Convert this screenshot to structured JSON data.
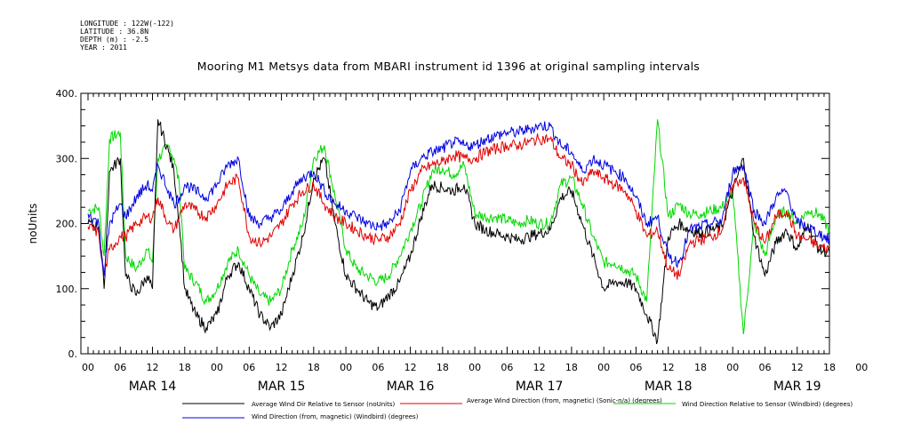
{
  "meta": {
    "longitude": "LONGITUDE : 122W(-122)",
    "latitude": "LATITUDE : 36.8N",
    "depth": "DEPTH (m) : -2.5",
    "year": "YEAR : 2011"
  },
  "colors": {
    "black": "#000000",
    "red": "#e00000",
    "blue": "#0000e0",
    "green": "#00d800"
  },
  "chart_data": {
    "type": "line",
    "title": "Mooring M1 Metsys data from MBARI instrument id 1396 at original sampling intervals",
    "ylabel": "noUnits",
    "xlabel": "",
    "ylim": [
      0,
      400
    ],
    "xlim_hours": [
      0,
      138
    ],
    "yticks": [
      0,
      100,
      200,
      300,
      400
    ],
    "ytick_labels": [
      "0.",
      "100.",
      "200.",
      "300.",
      "400."
    ],
    "x_hour_labels": [
      "00",
      "06",
      "12",
      "18",
      "00",
      "06",
      "12",
      "18",
      "00",
      "06",
      "12",
      "18",
      "00",
      "06",
      "12",
      "18",
      "00",
      "06",
      "12",
      "18",
      "00",
      "06",
      "12",
      "18",
      "00"
    ],
    "day_labels": [
      "MAR 14",
      "MAR 15",
      "MAR 16",
      "MAR 17",
      "MAR 18",
      "MAR 19"
    ],
    "grid": false,
    "legend_position": "bottom",
    "series": [
      {
        "name": "Average Wind Dir Relative to Sensor (noUnits)",
        "color": "black",
        "points": [
          [
            0,
            200
          ],
          [
            2,
            195
          ],
          [
            3,
            100
          ],
          [
            4,
            280
          ],
          [
            6,
            300
          ],
          [
            7,
            120
          ],
          [
            9,
            90
          ],
          [
            11,
            120
          ],
          [
            12,
            100
          ],
          [
            13,
            360
          ],
          [
            15,
            310
          ],
          [
            16,
            280
          ],
          [
            17,
            200
          ],
          [
            18,
            100
          ],
          [
            20,
            60
          ],
          [
            22,
            40
          ],
          [
            24,
            60
          ],
          [
            26,
            120
          ],
          [
            28,
            140
          ],
          [
            30,
            100
          ],
          [
            32,
            60
          ],
          [
            34,
            40
          ],
          [
            36,
            60
          ],
          [
            38,
            120
          ],
          [
            40,
            180
          ],
          [
            42,
            270
          ],
          [
            44,
            300
          ],
          [
            46,
            200
          ],
          [
            48,
            120
          ],
          [
            50,
            100
          ],
          [
            52,
            80
          ],
          [
            54,
            70
          ],
          [
            56,
            90
          ],
          [
            58,
            110
          ],
          [
            60,
            150
          ],
          [
            62,
            210
          ],
          [
            64,
            260
          ],
          [
            66,
            255
          ],
          [
            68,
            250
          ],
          [
            70,
            260
          ],
          [
            72,
            200
          ],
          [
            74,
            190
          ],
          [
            76,
            185
          ],
          [
            78,
            180
          ],
          [
            80,
            175
          ],
          [
            82,
            180
          ],
          [
            84,
            185
          ],
          [
            86,
            190
          ],
          [
            88,
            240
          ],
          [
            90,
            250
          ],
          [
            92,
            200
          ],
          [
            94,
            150
          ],
          [
            96,
            100
          ],
          [
            98,
            110
          ],
          [
            100,
            110
          ],
          [
            102,
            100
          ],
          [
            104,
            60
          ],
          [
            106,
            20
          ],
          [
            108,
            180
          ],
          [
            110,
            200
          ],
          [
            112,
            190
          ],
          [
            114,
            185
          ],
          [
            116,
            190
          ],
          [
            118,
            195
          ],
          [
            120,
            250
          ],
          [
            122,
            300
          ],
          [
            124,
            180
          ],
          [
            126,
            120
          ],
          [
            128,
            170
          ],
          [
            130,
            190
          ],
          [
            132,
            160
          ],
          [
            134,
            200
          ],
          [
            136,
            160
          ],
          [
            138,
            155
          ]
        ]
      },
      {
        "name": "Average Wind Direction (from, magnetic) (Sonic-n/a) (degrees)",
        "color": "red",
        "points": [
          [
            0,
            195
          ],
          [
            2,
            185
          ],
          [
            3,
            120
          ],
          [
            4,
            160
          ],
          [
            6,
            180
          ],
          [
            7,
            180
          ],
          [
            9,
            200
          ],
          [
            11,
            210
          ],
          [
            12,
            210
          ],
          [
            13,
            240
          ],
          [
            15,
            200
          ],
          [
            16,
            190
          ],
          [
            17,
            210
          ],
          [
            18,
            230
          ],
          [
            20,
            220
          ],
          [
            22,
            210
          ],
          [
            24,
            230
          ],
          [
            26,
            260
          ],
          [
            28,
            270
          ],
          [
            30,
            180
          ],
          [
            32,
            170
          ],
          [
            34,
            180
          ],
          [
            36,
            200
          ],
          [
            38,
            230
          ],
          [
            40,
            250
          ],
          [
            42,
            260
          ],
          [
            44,
            230
          ],
          [
            46,
            210
          ],
          [
            48,
            200
          ],
          [
            50,
            190
          ],
          [
            52,
            180
          ],
          [
            54,
            175
          ],
          [
            56,
            180
          ],
          [
            58,
            200
          ],
          [
            60,
            250
          ],
          [
            62,
            280
          ],
          [
            64,
            290
          ],
          [
            66,
            295
          ],
          [
            68,
            305
          ],
          [
            70,
            300
          ],
          [
            72,
            300
          ],
          [
            74,
            310
          ],
          [
            76,
            315
          ],
          [
            78,
            320
          ],
          [
            80,
            320
          ],
          [
            82,
            325
          ],
          [
            84,
            330
          ],
          [
            86,
            330
          ],
          [
            88,
            300
          ],
          [
            90,
            290
          ],
          [
            92,
            260
          ],
          [
            94,
            280
          ],
          [
            96,
            270
          ],
          [
            98,
            260
          ],
          [
            100,
            250
          ],
          [
            102,
            220
          ],
          [
            104,
            180
          ],
          [
            106,
            190
          ],
          [
            108,
            130
          ],
          [
            110,
            120
          ],
          [
            112,
            170
          ],
          [
            114,
            175
          ],
          [
            116,
            180
          ],
          [
            118,
            190
          ],
          [
            120,
            260
          ],
          [
            122,
            270
          ],
          [
            124,
            200
          ],
          [
            126,
            170
          ],
          [
            128,
            210
          ],
          [
            130,
            220
          ],
          [
            132,
            180
          ],
          [
            134,
            175
          ],
          [
            136,
            165
          ],
          [
            138,
            160
          ]
        ]
      },
      {
        "name": "Wind Direction Relative to Sensor (Windbird) (degrees)",
        "color": "green",
        "points": [
          [
            0,
            220
          ],
          [
            2,
            225
          ],
          [
            3,
            150
          ],
          [
            4,
            330
          ],
          [
            6,
            340
          ],
          [
            7,
            150
          ],
          [
            9,
            130
          ],
          [
            11,
            160
          ],
          [
            12,
            140
          ],
          [
            13,
            300
          ],
          [
            15,
            320
          ],
          [
            16,
            300
          ],
          [
            17,
            260
          ],
          [
            18,
            130
          ],
          [
            20,
            110
          ],
          [
            22,
            80
          ],
          [
            24,
            100
          ],
          [
            26,
            140
          ],
          [
            28,
            160
          ],
          [
            30,
            120
          ],
          [
            32,
            90
          ],
          [
            34,
            80
          ],
          [
            36,
            100
          ],
          [
            38,
            160
          ],
          [
            40,
            200
          ],
          [
            42,
            300
          ],
          [
            44,
            320
          ],
          [
            46,
            240
          ],
          [
            48,
            160
          ],
          [
            50,
            130
          ],
          [
            52,
            120
          ],
          [
            54,
            110
          ],
          [
            56,
            120
          ],
          [
            58,
            150
          ],
          [
            60,
            190
          ],
          [
            62,
            230
          ],
          [
            64,
            280
          ],
          [
            66,
            285
          ],
          [
            68,
            275
          ],
          [
            70,
            290
          ],
          [
            72,
            215
          ],
          [
            74,
            210
          ],
          [
            76,
            210
          ],
          [
            78,
            205
          ],
          [
            80,
            200
          ],
          [
            82,
            205
          ],
          [
            84,
            200
          ],
          [
            86,
            200
          ],
          [
            88,
            260
          ],
          [
            90,
            270
          ],
          [
            92,
            230
          ],
          [
            94,
            180
          ],
          [
            96,
            140
          ],
          [
            98,
            140
          ],
          [
            100,
            130
          ],
          [
            102,
            120
          ],
          [
            104,
            80
          ],
          [
            106,
            360
          ],
          [
            108,
            210
          ],
          [
            110,
            230
          ],
          [
            112,
            215
          ],
          [
            114,
            215
          ],
          [
            116,
            220
          ],
          [
            118,
            225
          ],
          [
            120,
            250
          ],
          [
            122,
            30
          ],
          [
            124,
            200
          ],
          [
            126,
            150
          ],
          [
            128,
            210
          ],
          [
            130,
            220
          ],
          [
            132,
            200
          ],
          [
            134,
            220
          ],
          [
            136,
            215
          ],
          [
            138,
            190
          ]
        ]
      },
      {
        "name": "Wind Direction (from, magnetic) (Windbird) (degrees)",
        "color": "blue",
        "points": [
          [
            0,
            215
          ],
          [
            2,
            200
          ],
          [
            3,
            120
          ],
          [
            4,
            200
          ],
          [
            6,
            230
          ],
          [
            7,
            210
          ],
          [
            9,
            240
          ],
          [
            11,
            260
          ],
          [
            12,
            250
          ],
          [
            13,
            290
          ],
          [
            15,
            250
          ],
          [
            16,
            230
          ],
          [
            17,
            240
          ],
          [
            18,
            260
          ],
          [
            20,
            250
          ],
          [
            22,
            240
          ],
          [
            24,
            260
          ],
          [
            26,
            290
          ],
          [
            28,
            300
          ],
          [
            30,
            210
          ],
          [
            32,
            200
          ],
          [
            34,
            210
          ],
          [
            36,
            220
          ],
          [
            38,
            250
          ],
          [
            40,
            270
          ],
          [
            42,
            280
          ],
          [
            44,
            250
          ],
          [
            46,
            230
          ],
          [
            48,
            220
          ],
          [
            50,
            210
          ],
          [
            52,
            200
          ],
          [
            54,
            195
          ],
          [
            56,
            200
          ],
          [
            58,
            220
          ],
          [
            60,
            280
          ],
          [
            62,
            300
          ],
          [
            64,
            310
          ],
          [
            66,
            315
          ],
          [
            68,
            325
          ],
          [
            70,
            320
          ],
          [
            72,
            320
          ],
          [
            74,
            330
          ],
          [
            76,
            335
          ],
          [
            78,
            340
          ],
          [
            80,
            340
          ],
          [
            82,
            345
          ],
          [
            84,
            350
          ],
          [
            86,
            350
          ],
          [
            88,
            320
          ],
          [
            90,
            310
          ],
          [
            92,
            280
          ],
          [
            94,
            300
          ],
          [
            96,
            290
          ],
          [
            98,
            280
          ],
          [
            100,
            270
          ],
          [
            102,
            240
          ],
          [
            104,
            200
          ],
          [
            106,
            210
          ],
          [
            108,
            150
          ],
          [
            110,
            140
          ],
          [
            112,
            190
          ],
          [
            114,
            195
          ],
          [
            116,
            200
          ],
          [
            118,
            205
          ],
          [
            120,
            280
          ],
          [
            122,
            290
          ],
          [
            124,
            220
          ],
          [
            126,
            200
          ],
          [
            128,
            240
          ],
          [
            130,
            250
          ],
          [
            132,
            200
          ],
          [
            134,
            195
          ],
          [
            136,
            185
          ],
          [
            138,
            175
          ]
        ]
      }
    ]
  }
}
